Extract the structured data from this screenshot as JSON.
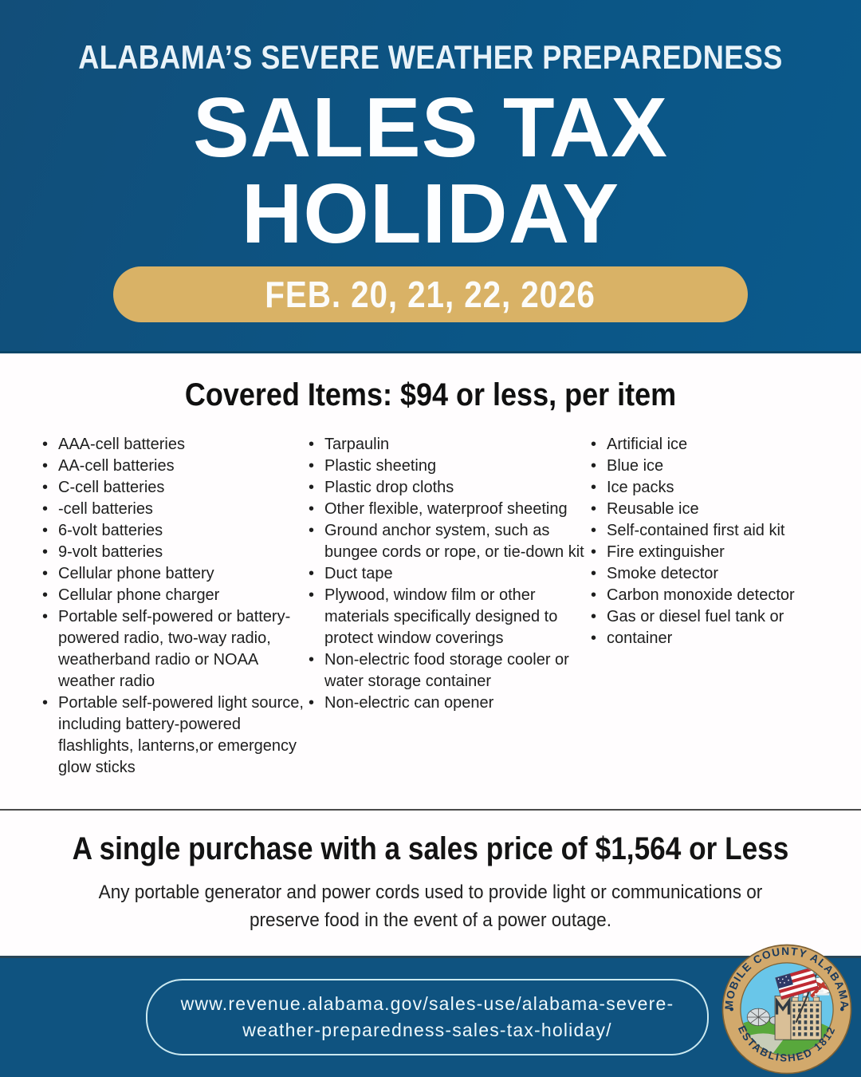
{
  "header": {
    "kicker": "ALABAMA’S SEVERE WEATHER PREPAREDNESS",
    "title_line1": "SALES TAX",
    "title_line2": "HOLIDAY",
    "date_badge": "FEB. 20, 21, 22, 2026"
  },
  "covered": {
    "heading": "Covered Items: $94 or less, per item",
    "columns": [
      {
        "items": [
          "AAA-cell batteries",
          "AA-cell batteries",
          "C-cell batteries",
          "-cell batteries",
          "6-volt batteries",
          "9-volt batteries",
          "Cellular phone battery",
          "Cellular phone charger",
          "Portable self-powered or battery-powered radio, two-way radio, weatherband radio or NOAA weather radio",
          "Portable self-powered light source, including battery-powered flashlights, lanterns,or emergency glow sticks"
        ]
      },
      {
        "items": [
          "Tarpaulin",
          "Plastic sheeting",
          "Plastic drop cloths",
          "Other flexible, waterproof sheeting",
          "Ground anchor system, such as bungee cords or rope, or tie-down kit",
          "Duct tape",
          "Plywood, window film or other materials specifically designed to protect window coverings",
          "Non-electric food storage cooler or water storage container",
          "Non-electric can opener"
        ]
      },
      {
        "items": [
          "Artificial ice",
          "Blue ice",
          "Ice packs",
          "Reusable ice",
          "Self-contained first aid kit",
          "Fire extinguisher",
          "Smoke detector",
          "Carbon monoxide detector",
          "Gas or diesel fuel tank or",
          "container"
        ]
      }
    ]
  },
  "purchase": {
    "heading": "A single purchase with a sales price of $1,564 or Less",
    "body_line1": "Any portable generator and power cords used to provide light or communications or",
    "body_line2": "preserve food in the event of a power outage."
  },
  "footer": {
    "url_line1": "www.revenue.alabama.gov/sales-use/alabama-severe-",
    "url_line2": "weather-preparedness-sales-tax-holiday/",
    "seal": {
      "top_text": "MOBILE COUNTY ALABAMA",
      "bottom_text": "ESTABLISHED 1812"
    }
  },
  "colors": {
    "header_blue": "#0F5380",
    "accent_gold": "#D9B266",
    "footer_blue": "#0F5380",
    "seal_ring_tan": "#D2A96C",
    "seal_sky_blue": "#69C6E9",
    "seal_text_navy": "#1B3A5C"
  }
}
